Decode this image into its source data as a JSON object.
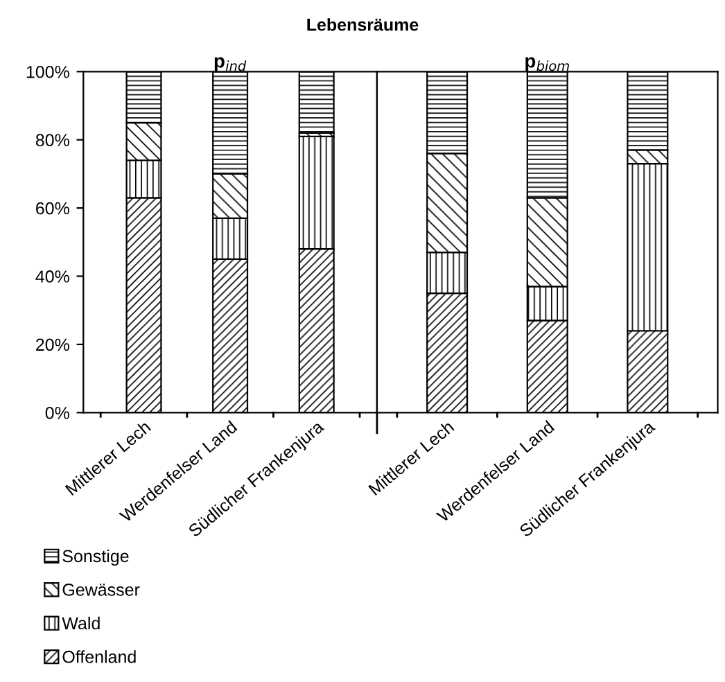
{
  "chart_data": [
    {
      "type": "bar",
      "stacked": true,
      "title": "p$_{ind}$",
      "annotations": [
        "Lebensräume"
      ],
      "categories": [
        "Mittlerer Lech",
        "Werdenfelser Land",
        "Südlicher Frankenjura"
      ],
      "ylim": [
        0,
        100
      ],
      "yticks": [
        {
          "value": 0,
          "label": "0%"
        },
        {
          "value": 20,
          "label": "20%"
        },
        {
          "value": 40,
          "label": "40%"
        },
        {
          "value": 60,
          "label": "60%"
        },
        {
          "value": 80,
          "label": "80%"
        },
        {
          "value": 100,
          "label": "100%"
        }
      ],
      "grid": false,
      "legend": "bottom left",
      "series": [
        {
          "name": "Offenland",
          "color": "#000000",
          "values": [
            63,
            45,
            48
          ]
        },
        {
          "name": "Wald",
          "color": "#000000",
          "values": [
            11,
            12,
            33
          ]
        },
        {
          "name": "Gewässer",
          "color": "#000000",
          "values": [
            11,
            13,
            1
          ]
        },
        {
          "name": "Sonstige",
          "color": "#000000",
          "values": [
            15,
            30,
            18
          ]
        }
      ]
    },
    {
      "type": "bar",
      "stacked": true,
      "title": "p$_{biom}$",
      "categories": [
        "Mittlerer Lech",
        "Werdenfelser Land",
        "Südlicher Frankenjura"
      ],
      "ylim": [
        0,
        100
      ],
      "tick_labels": "x",
      "grid": false,
      "series": [
        {
          "color": "#000000",
          "values": [
            35,
            27,
            24
          ]
        },
        {
          "color": "#000000",
          "values": [
            12,
            10,
            49
          ]
        },
        {
          "color": "#000000",
          "values": [
            29,
            26,
            4
          ]
        },
        {
          "color": "#000000",
          "values": [
            24,
            37,
            23
          ]
        }
      ]
    }
  ]
}
